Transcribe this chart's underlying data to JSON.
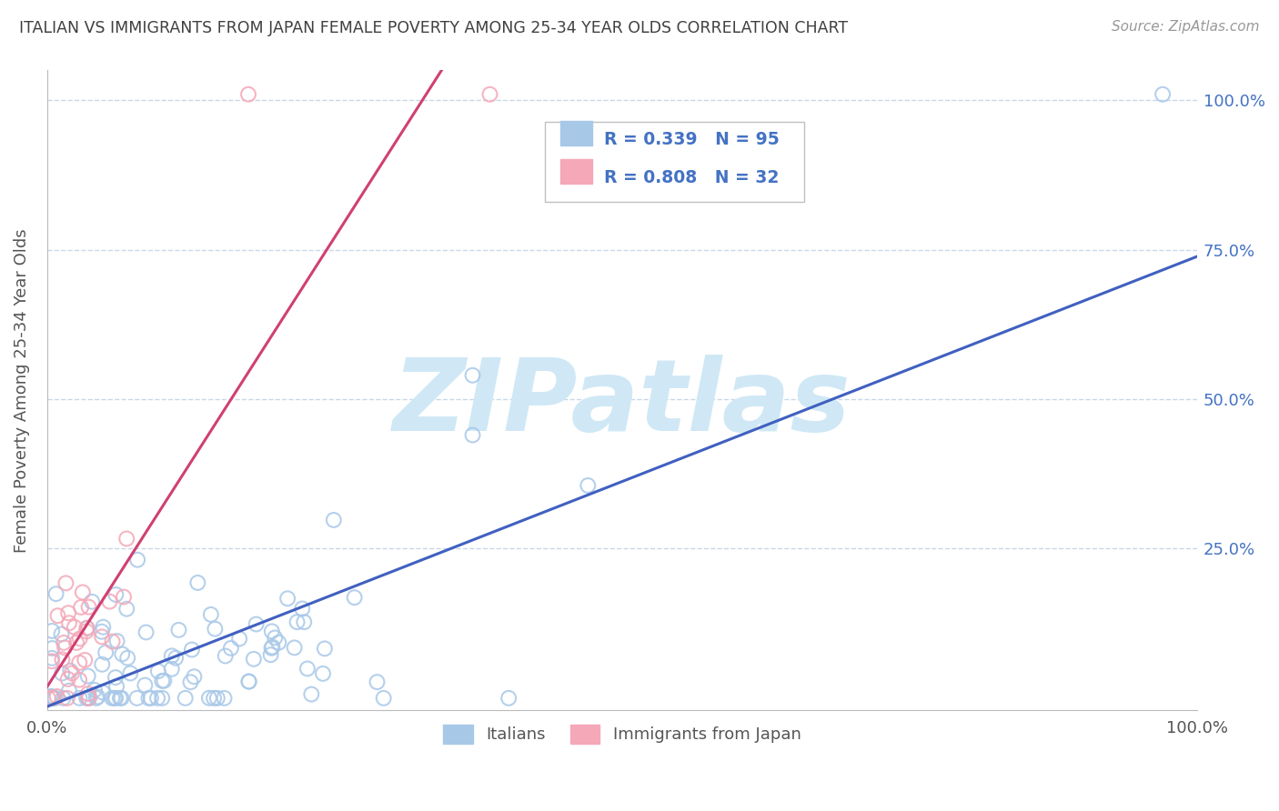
{
  "title": "ITALIAN VS IMMIGRANTS FROM JAPAN FEMALE POVERTY AMONG 25-34 YEAR OLDS CORRELATION CHART",
  "source": "Source: ZipAtlas.com",
  "ylabel": "Female Poverty Among 25-34 Year Olds",
  "xlim": [
    0,
    1
  ],
  "ylim": [
    -0.02,
    1.05
  ],
  "ytick_labels_right": [
    "25.0%",
    "50.0%",
    "75.0%",
    "100.0%"
  ],
  "ytick_vals": [
    0.25,
    0.5,
    0.75,
    1.0
  ],
  "legend_R1": "R = 0.339",
  "legend_N1": "N = 95",
  "legend_R2": "R = 0.808",
  "legend_N2": "N = 32",
  "label1": "Italians",
  "label2": "Immigrants from Japan",
  "color1": "#a8c8e8",
  "color2": "#f4a8b8",
  "line_color1": "#4060c0",
  "line_color2": "#d04070",
  "watermark": "ZIPatlas",
  "watermark_color": "#d0e8f5",
  "background_color": "#ffffff",
  "title_color": "#404040",
  "grid_color": "#c8d8e8",
  "seed": 7,
  "n_italians": 95,
  "n_japan": 32
}
